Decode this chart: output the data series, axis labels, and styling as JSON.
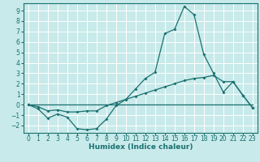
{
  "title": "",
  "xlabel": "Humidex (Indice chaleur)",
  "background_color": "#c8eaea",
  "grid_color": "#ffffff",
  "line_color": "#1a7070",
  "xlim": [
    -0.5,
    23.5
  ],
  "ylim": [
    -2.7,
    9.7
  ],
  "xticks": [
    0,
    1,
    2,
    3,
    4,
    5,
    6,
    7,
    8,
    9,
    10,
    11,
    12,
    13,
    14,
    15,
    16,
    17,
    18,
    19,
    20,
    21,
    22,
    23
  ],
  "yticks": [
    -2,
    -1,
    0,
    1,
    2,
    3,
    4,
    5,
    6,
    7,
    8,
    9
  ],
  "line1_x": [
    0,
    1,
    2,
    3,
    4,
    5,
    6,
    7,
    8,
    9,
    10,
    11,
    12,
    13,
    14,
    15,
    16,
    17,
    18,
    19,
    20,
    21,
    22,
    23
  ],
  "line1_y": [
    0.0,
    -0.4,
    -1.3,
    -0.9,
    -1.2,
    -2.3,
    -2.4,
    -2.3,
    -1.4,
    -0.1,
    0.5,
    1.5,
    2.5,
    3.1,
    6.8,
    7.2,
    9.4,
    8.6,
    4.8,
    3.0,
    1.2,
    2.2,
    0.9,
    -0.3
  ],
  "line2_x": [
    0,
    1,
    2,
    3,
    4,
    5,
    6,
    7,
    8,
    9,
    10,
    11,
    12,
    13,
    14,
    15,
    16,
    17,
    18,
    19,
    20,
    21,
    22,
    23
  ],
  "line2_y": [
    0.0,
    -0.2,
    -0.6,
    -0.5,
    -0.7,
    -0.7,
    -0.6,
    -0.6,
    -0.1,
    0.2,
    0.5,
    0.8,
    1.1,
    1.4,
    1.7,
    2.0,
    2.3,
    2.5,
    2.6,
    2.8,
    2.2,
    2.2,
    0.9,
    -0.3
  ],
  "line3_x": [
    0,
    23
  ],
  "line3_y": [
    0.0,
    0.0
  ]
}
